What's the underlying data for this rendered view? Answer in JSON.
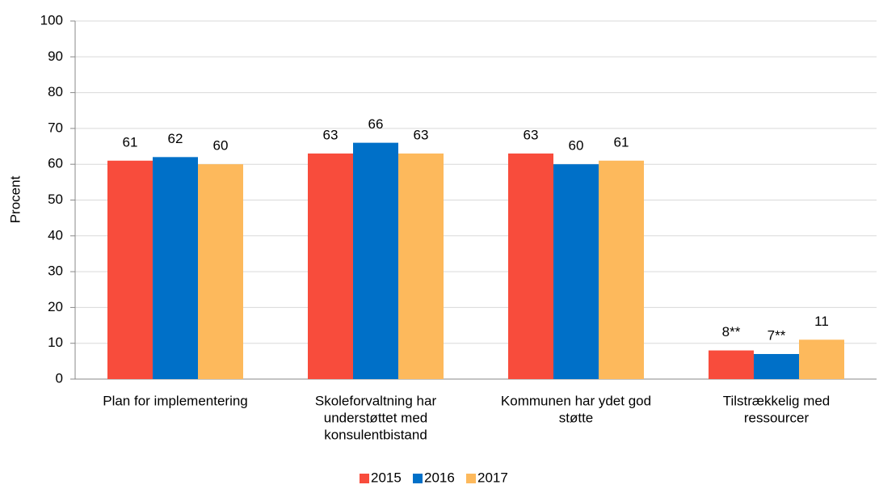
{
  "chart_data": {
    "type": "bar",
    "ylabel": "Procent",
    "categories": [
      [
        "Plan for implementering"
      ],
      [
        "Skoleforvaltning har",
        "understøttet med",
        "konsulentbistand"
      ],
      [
        "Kommunen har ydet god",
        "støtte"
      ],
      [
        "Tilstrækkelig med",
        "ressourcer"
      ]
    ],
    "series": [
      {
        "name": "2015",
        "color": "#f84c3c",
        "values": [
          61,
          63,
          63,
          8
        ],
        "value_labels": [
          "61",
          "63",
          "63",
          "8**"
        ]
      },
      {
        "name": "2016",
        "color": "#0070c8",
        "values": [
          62,
          66,
          60,
          7
        ],
        "value_labels": [
          "62",
          "66",
          "60",
          "7**"
        ]
      },
      {
        "name": "2017",
        "color": "#fdb95c",
        "values": [
          60,
          63,
          61,
          11
        ],
        "value_labels": [
          "60",
          "63",
          "61",
          "11"
        ]
      }
    ],
    "ylim": [
      0,
      100
    ],
    "yticks": [
      0,
      10,
      20,
      30,
      40,
      50,
      60,
      70,
      80,
      90,
      100
    ],
    "grid": true,
    "legend": "bottom"
  }
}
